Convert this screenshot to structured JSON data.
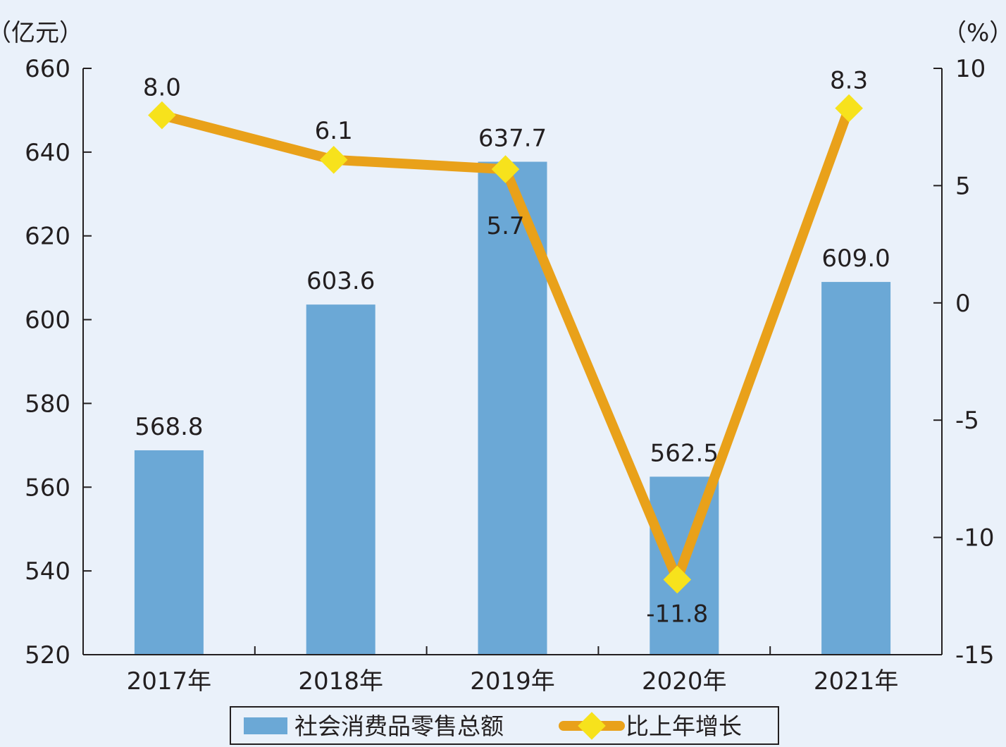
{
  "chart_data": {
    "type": "bar",
    "categories": [
      "2017年",
      "2018年",
      "2019年",
      "2020年",
      "2021年"
    ],
    "series": [
      {
        "name": "社会消费品零售总额",
        "type": "bar",
        "axis": "left",
        "values": [
          568.8,
          603.6,
          637.7,
          562.5,
          609.0
        ],
        "labels": [
          "568.8",
          "603.6",
          "637.7",
          "562.5",
          "609.0"
        ],
        "color": "#6ba8d6"
      },
      {
        "name": "比上年增长",
        "type": "line",
        "axis": "right",
        "values": [
          8.0,
          6.1,
          5.7,
          -11.8,
          8.3
        ],
        "labels": [
          "8.0",
          "6.1",
          "5.7",
          "-11.8",
          "8.3"
        ],
        "color": "#e9a11a",
        "marker_color": "#f7e21c"
      }
    ],
    "left_axis": {
      "unit_label": "（亿元）",
      "ylim": [
        520,
        660
      ],
      "ticks": [
        "520",
        "540",
        "560",
        "580",
        "600",
        "620",
        "640",
        "660"
      ]
    },
    "right_axis": {
      "unit_label": "（%）",
      "ylim": [
        -15,
        10
      ],
      "ticks": [
        "-15",
        "-10",
        "-5",
        "0",
        "5",
        "10"
      ]
    },
    "grid": false,
    "legend_position": "bottom-center"
  }
}
